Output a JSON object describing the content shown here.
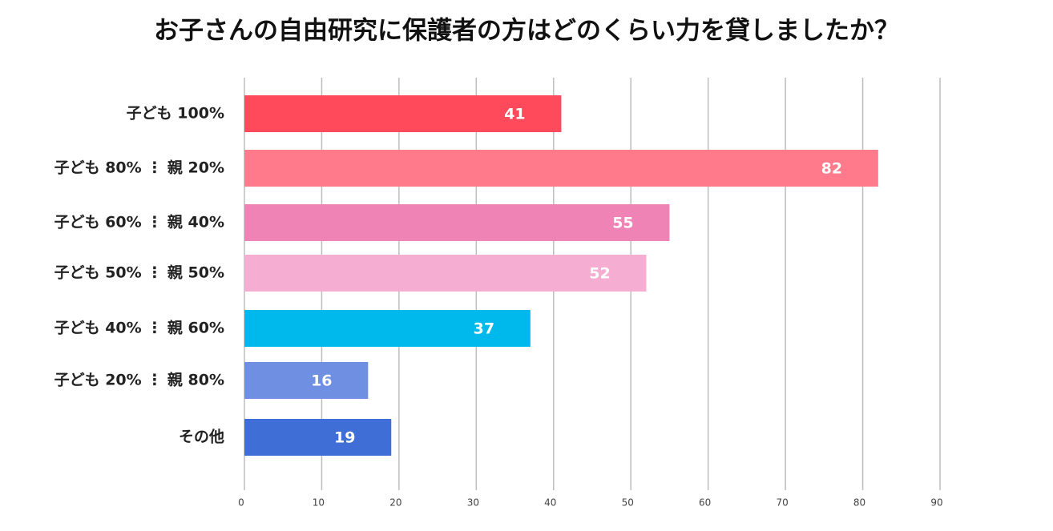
{
  "chart_data": {
    "type": "bar",
    "orientation": "horizontal",
    "title": "お子さんの自由研究に保護者の方はどのくらい力を貸しましたか？",
    "categories": [
      "子ども 100%",
      "子ども 80% ⋮ 親 20%",
      "子ども 60% ⋮ 親 40%",
      "子ども 50% ⋮ 親 50%",
      "子ども 40% ⋮ 親 60%",
      "子ども 20% ⋮ 親 80%",
      "その他"
    ],
    "values": [
      41,
      82,
      55,
      52,
      37,
      16,
      19
    ],
    "colors": [
      "#ff4a5c",
      "#ff7a8a",
      "#f083b6",
      "#f5aed1",
      "#00b9ec",
      "#6f8fe2",
      "#3f6fd6"
    ],
    "xlim": [
      0,
      90
    ],
    "xticks": [
      0,
      10,
      20,
      30,
      40,
      50,
      60,
      70,
      80,
      90
    ],
    "grid": true
  }
}
